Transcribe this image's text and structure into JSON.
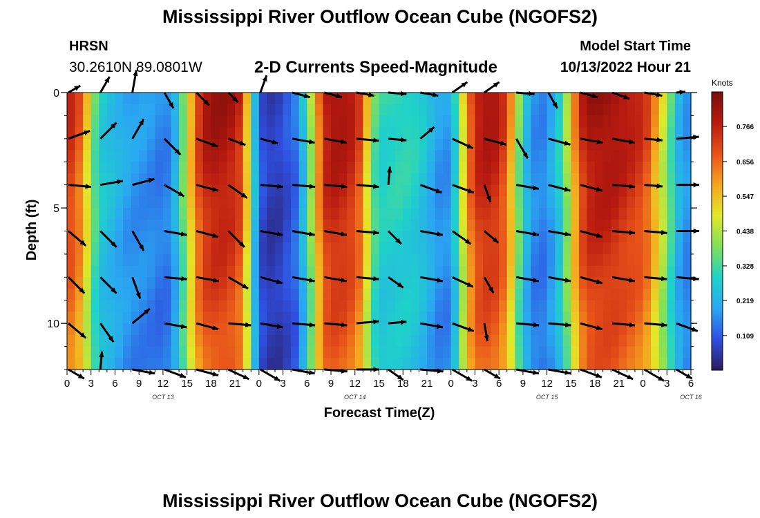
{
  "header": {
    "title": "Mississippi River Outflow Ocean Cube (NGOFS2)",
    "station": "HRSN",
    "coordinates": "30.2610N  89.0801W",
    "subtitle": "2-D Currents Speed-Magnitude",
    "model_start_label": "Model Start Time",
    "model_start_time": "10/13/2022 Hour 21"
  },
  "footer": {
    "title": "Mississippi River Outflow Ocean Cube (NGOFS2)"
  },
  "colorbar": {
    "unit": "Knots",
    "ticks": [
      "0.766",
      "0.656",
      "0.547",
      "0.438",
      "0.328",
      "0.219",
      "0.109"
    ],
    "tick_values": [
      0.766,
      0.656,
      0.547,
      0.438,
      0.328,
      0.219,
      0.109
    ],
    "range": [
      0.0,
      0.875
    ],
    "colors": [
      "#2a1a5e",
      "#2f4fe0",
      "#2aa8f2",
      "#1fd2c8",
      "#7fe05a",
      "#e2e82a",
      "#f5a51e",
      "#e8531a",
      "#b81a10",
      "#7a0c0a"
    ]
  },
  "chart_data": {
    "type": "heatmap",
    "title": "2-D Currents Speed-Magnitude",
    "xlabel": "Forecast Time(Z)",
    "ylabel": "Depth (ft)",
    "xlim": [
      0,
      78
    ],
    "ylim": [
      12,
      0
    ],
    "x_tick_labels": [
      "0",
      "3",
      "6",
      "9",
      "12",
      "15",
      "18",
      "21",
      "0",
      "3",
      "6",
      "9",
      "12",
      "15",
      "18",
      "21",
      "0",
      "3",
      "6",
      "9",
      "12",
      "15",
      "18",
      "21",
      "0",
      "3",
      "6"
    ],
    "y_ticks": [
      0,
      5,
      10
    ],
    "y_tick_labels": [
      "0",
      "5",
      "10"
    ],
    "date_labels": [
      {
        "label": "OCT 13",
        "hour": 12
      },
      {
        "label": "OCT 14",
        "hour": 36
      },
      {
        "label": "OCT 15",
        "hour": 60
      },
      {
        "label": "OCT 16",
        "hour": 78
      }
    ],
    "time_step_hours": 1,
    "depth_levels_ft": [
      0,
      0.5,
      1,
      1.5,
      2,
      2.5,
      3,
      3.5,
      4,
      4.5,
      5,
      5.5,
      6,
      6.5,
      7,
      7.5,
      8,
      8.5,
      9,
      9.5,
      10,
      10.5,
      11,
      11.5
    ],
    "speed_profile_knots": [
      [
        0,
        0.8
      ],
      [
        1,
        0.76
      ],
      [
        2,
        0.66
      ],
      [
        3,
        0.45
      ],
      [
        4,
        0.3
      ],
      [
        5,
        0.28
      ],
      [
        6,
        0.25
      ],
      [
        7,
        0.22
      ],
      [
        8,
        0.2
      ],
      [
        9,
        0.19
      ],
      [
        10,
        0.19
      ],
      [
        11,
        0.17
      ],
      [
        12,
        0.16
      ],
      [
        13,
        0.18
      ],
      [
        14,
        0.3
      ],
      [
        15,
        0.5
      ],
      [
        16,
        0.7
      ],
      [
        17,
        0.82
      ],
      [
        18,
        0.85
      ],
      [
        19,
        0.86
      ],
      [
        20,
        0.85
      ],
      [
        21,
        0.82
      ],
      [
        22,
        0.76
      ],
      [
        23,
        0.4
      ],
      [
        24,
        0.12
      ],
      [
        25,
        0.08
      ],
      [
        26,
        0.06
      ],
      [
        27,
        0.09
      ],
      [
        28,
        0.12
      ],
      [
        29,
        0.16
      ],
      [
        30,
        0.35
      ],
      [
        31,
        0.55
      ],
      [
        32,
        0.8
      ],
      [
        33,
        0.85
      ],
      [
        34,
        0.85
      ],
      [
        35,
        0.83
      ],
      [
        36,
        0.8
      ],
      [
        37,
        0.7
      ],
      [
        38,
        0.42
      ],
      [
        39,
        0.32
      ],
      [
        40,
        0.32
      ],
      [
        41,
        0.33
      ],
      [
        42,
        0.33
      ],
      [
        43,
        0.32
      ],
      [
        44,
        0.3
      ],
      [
        45,
        0.26
      ],
      [
        46,
        0.21
      ],
      [
        47,
        0.18
      ],
      [
        48,
        0.2
      ],
      [
        49,
        0.4
      ],
      [
        50,
        0.65
      ],
      [
        51,
        0.8
      ],
      [
        52,
        0.84
      ],
      [
        53,
        0.84
      ],
      [
        54,
        0.81
      ],
      [
        55,
        0.72
      ],
      [
        56,
        0.52
      ],
      [
        57,
        0.3
      ],
      [
        58,
        0.2
      ],
      [
        59,
        0.16
      ],
      [
        60,
        0.18
      ],
      [
        61,
        0.25
      ],
      [
        62,
        0.35
      ],
      [
        63,
        0.55
      ],
      [
        64,
        0.75
      ],
      [
        65,
        0.84
      ],
      [
        66,
        0.86
      ],
      [
        67,
        0.86
      ],
      [
        68,
        0.86
      ],
      [
        69,
        0.84
      ],
      [
        70,
        0.82
      ],
      [
        71,
        0.8
      ],
      [
        72,
        0.78
      ],
      [
        73,
        0.7
      ],
      [
        74,
        0.55
      ],
      [
        75,
        0.45
      ],
      [
        76,
        0.28
      ],
      [
        77,
        0.2
      ],
      [
        78,
        0.18
      ]
    ],
    "vector_rows_ft": [
      0,
      2,
      4,
      6,
      8,
      10,
      12
    ],
    "vector_hours": [
      0,
      4,
      8,
      12,
      16,
      20,
      24,
      28,
      32,
      36,
      40,
      44,
      48,
      52,
      56,
      60,
      64,
      68,
      72,
      76
    ],
    "vector_direction_deg": [
      [
        -30,
        -60,
        -80,
        60,
        45,
        45,
        -70,
        15,
        15,
        10,
        5,
        10,
        -35,
        -35,
        5,
        60,
        15,
        20,
        10,
        -5
      ],
      [
        -20,
        -45,
        -60,
        45,
        20,
        20,
        15,
        10,
        10,
        5,
        5,
        -40,
        25,
        15,
        60,
        15,
        10,
        10,
        5,
        -5
      ],
      [
        5,
        -10,
        -15,
        30,
        15,
        35,
        5,
        5,
        5,
        5,
        -85,
        20,
        20,
        70,
        10,
        15,
        15,
        5,
        5,
        0
      ],
      [
        40,
        45,
        60,
        10,
        15,
        45,
        10,
        10,
        10,
        5,
        45,
        10,
        35,
        40,
        10,
        10,
        15,
        5,
        5,
        0
      ],
      [
        45,
        45,
        70,
        5,
        10,
        30,
        15,
        10,
        10,
        5,
        35,
        10,
        25,
        60,
        10,
        10,
        15,
        10,
        5,
        5
      ],
      [
        40,
        55,
        -40,
        10,
        15,
        5,
        10,
        5,
        5,
        -5,
        -5,
        10,
        20,
        80,
        5,
        5,
        15,
        5,
        5,
        20
      ],
      [
        30,
        -85,
        10,
        20,
        15,
        25,
        30,
        10,
        5,
        0,
        35,
        5,
        30,
        30,
        10,
        10,
        20,
        25,
        30,
        30
      ]
    ],
    "vector_speed_knots": [
      [
        0.3,
        0.4,
        0.5,
        0.4,
        0.4,
        0.3,
        0.4,
        0.4,
        0.4,
        0.4,
        0.4,
        0.4,
        0.4,
        0.4,
        0.4,
        0.4,
        0.4,
        0.4,
        0.4,
        0.2
      ],
      [
        0.5,
        0.5,
        0.5,
        0.5,
        0.5,
        0.4,
        0.4,
        0.5,
        0.5,
        0.5,
        0.4,
        0.4,
        0.5,
        0.5,
        0.5,
        0.5,
        0.5,
        0.5,
        0.4,
        0.5
      ],
      [
        0.5,
        0.5,
        0.5,
        0.5,
        0.5,
        0.5,
        0.5,
        0.5,
        0.5,
        0.5,
        0.4,
        0.5,
        0.5,
        0.4,
        0.5,
        0.5,
        0.5,
        0.5,
        0.4,
        0.5
      ],
      [
        0.5,
        0.5,
        0.5,
        0.5,
        0.5,
        0.5,
        0.5,
        0.5,
        0.5,
        0.5,
        0.4,
        0.5,
        0.5,
        0.4,
        0.5,
        0.5,
        0.5,
        0.5,
        0.5,
        0.5
      ],
      [
        0.5,
        0.5,
        0.5,
        0.5,
        0.5,
        0.5,
        0.5,
        0.5,
        0.5,
        0.5,
        0.4,
        0.5,
        0.5,
        0.4,
        0.5,
        0.5,
        0.5,
        0.5,
        0.5,
        0.5
      ],
      [
        0.5,
        0.5,
        0.5,
        0.5,
        0.5,
        0.5,
        0.5,
        0.5,
        0.5,
        0.5,
        0.4,
        0.5,
        0.5,
        0.4,
        0.5,
        0.5,
        0.5,
        0.5,
        0.5,
        0.5
      ],
      [
        0.4,
        0.4,
        0.5,
        0.5,
        0.5,
        0.5,
        0.5,
        0.5,
        0.5,
        0.5,
        0.4,
        0.5,
        0.5,
        0.4,
        0.5,
        0.5,
        0.5,
        0.5,
        0.5,
        0.4
      ]
    ]
  }
}
